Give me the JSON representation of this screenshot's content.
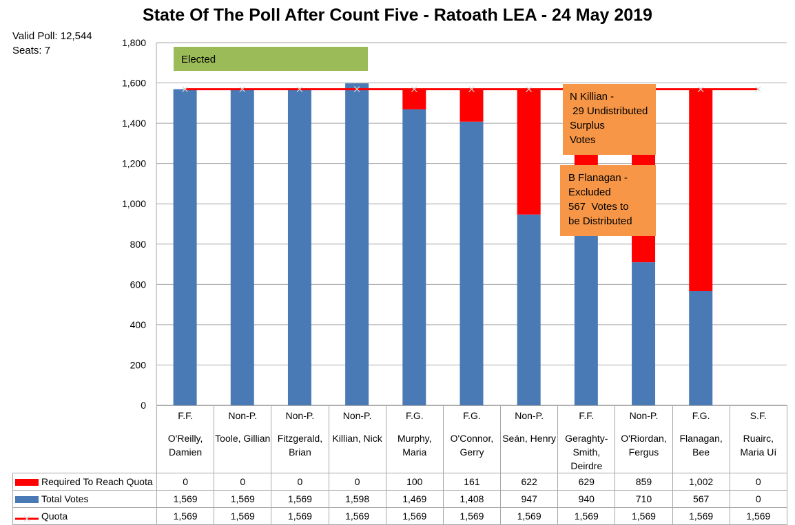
{
  "chart_data": {
    "type": "bar",
    "stacked": true,
    "title": "State Of The Poll After Count Five - Ratoath LEA - 24 May 2019",
    "ylim": [
      0,
      1800
    ],
    "yticks": [
      "0",
      "200",
      "400",
      "600",
      "800",
      "1,000",
      "1,200",
      "1,400",
      "1,600",
      "1,800"
    ],
    "ytick_values": [
      0,
      200,
      400,
      600,
      800,
      1000,
      1200,
      1400,
      1600,
      1800
    ],
    "grid": true,
    "categories": [
      {
        "party": "F.F.",
        "name": "O'Reilly, Damien"
      },
      {
        "party": "Non-P.",
        "name": "Toole, Gillian"
      },
      {
        "party": "Non-P.",
        "name": "Fitzgerald, Brian"
      },
      {
        "party": "Non-P.",
        "name": "Killian, Nick"
      },
      {
        "party": "F.G.",
        "name": "Murphy, Maria"
      },
      {
        "party": "F.G.",
        "name": "O'Connor, Gerry"
      },
      {
        "party": "Non-P.",
        "name": "Seán, Henry"
      },
      {
        "party": "F.F.",
        "name": "Geraghty-Smith, Deirdre"
      },
      {
        "party": "Non-P.",
        "name": "O'Riordan, Fergus"
      },
      {
        "party": "F.G.",
        "name": "Flanagan, Bee"
      },
      {
        "party": "S.F.",
        "name": "Ruairc, Maria Uí"
      }
    ],
    "series": [
      {
        "name": "Required To Reach Quota",
        "color": "#ff0000",
        "values": [
          0,
          0,
          0,
          0,
          100,
          161,
          622,
          629,
          859,
          1002,
          0
        ],
        "labels": [
          "0",
          "0",
          "0",
          "0",
          "100",
          "161",
          "622",
          "629",
          "859",
          "1,002",
          "0"
        ]
      },
      {
        "name": "Total Votes",
        "color": "#4a7ab5",
        "values": [
          1569,
          1569,
          1569,
          1598,
          1469,
          1408,
          947,
          940,
          710,
          567,
          0
        ],
        "labels": [
          "1,569",
          "1,569",
          "1,569",
          "1,598",
          "1,469",
          "1,408",
          "947",
          "940",
          "710",
          "567",
          "0"
        ]
      },
      {
        "name": "Quota",
        "color": "#ff0000",
        "type": "line",
        "values": [
          1569,
          1569,
          1569,
          1569,
          1569,
          1569,
          1569,
          1569,
          1569,
          1569,
          1569
        ],
        "labels": [
          "1,569",
          "1,569",
          "1,569",
          "1,569",
          "1,569",
          "1,569",
          "1,569",
          "1,569",
          "1,569",
          "1,569",
          "1,569"
        ]
      }
    ],
    "annotations": {
      "elected": "Elected",
      "killian": [
        "N Killian -",
        " 29 Undistributed",
        "Surplus",
        "Votes"
      ],
      "flanagan": [
        "B Flanagan -",
        "Excluded",
        "567  Votes to",
        "be Distributed"
      ]
    }
  },
  "info": {
    "valid_poll": "Valid Poll: 12,544",
    "seats": "Seats: 7"
  }
}
